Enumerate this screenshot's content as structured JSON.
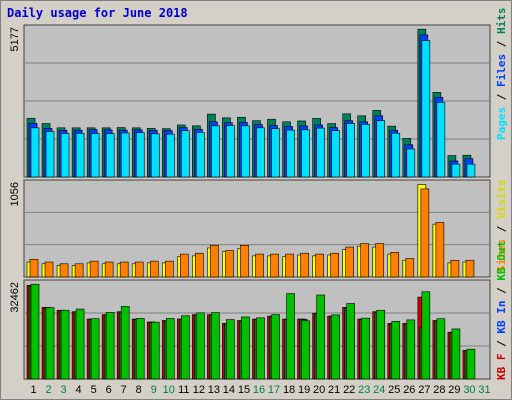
{
  "title": "Daily usage for June 2018",
  "colors": {
    "hits": "#00805c",
    "files": "#0040ff",
    "pages": "#00e0ff",
    "visits": "#ffff00",
    "sites": "#ff8000",
    "kbin": "#008000",
    "kbout": "#00c000",
    "kbf": "#cc0000",
    "grid": "#808080",
    "plot": "#c0c0c0",
    "weekend": "#008040",
    "weekday": "#000000"
  },
  "chart_data": [
    {
      "type": "bar",
      "panel": "pages-files-hits",
      "ymax_label": "5177",
      "ymax": 5177,
      "categories": [
        "1",
        "2",
        "3",
        "4",
        "5",
        "6",
        "7",
        "8",
        "9",
        "10",
        "11",
        "12",
        "13",
        "14",
        "15",
        "16",
        "17",
        "18",
        "19",
        "20",
        "21",
        "22",
        "23",
        "24",
        "25",
        "26",
        "27",
        "28",
        "29",
        "30",
        "31"
      ],
      "weekend_days": [
        "2",
        "3",
        "9",
        "10",
        "16",
        "17",
        "23",
        "24",
        "30",
        "31"
      ],
      "legend": [
        "Pages",
        "Files",
        "Hits"
      ],
      "series": [
        {
          "name": "Hits",
          "color": "#00805c",
          "values": [
            2050,
            1870,
            1720,
            1720,
            1720,
            1720,
            1730,
            1720,
            1700,
            1690,
            1820,
            1790,
            2200,
            2070,
            2090,
            1970,
            2020,
            1930,
            1960,
            2050,
            1870,
            2210,
            2140,
            2330,
            1780,
            1350,
            5170,
            2960,
            750,
            760,
            null
          ]
        },
        {
          "name": "Files",
          "color": "#0040ff",
          "values": [
            1880,
            1700,
            1630,
            1640,
            1660,
            1650,
            1640,
            1650,
            1630,
            1620,
            1730,
            1670,
            1930,
            1900,
            1910,
            1830,
            1800,
            1770,
            1790,
            1820,
            1730,
            1970,
            1930,
            2140,
            1630,
            1130,
            4970,
            2790,
            560,
            640,
            null
          ]
        },
        {
          "name": "Pages",
          "color": "#00e0ff",
          "values": [
            1720,
            1590,
            1520,
            1530,
            1520,
            1520,
            1540,
            1550,
            1510,
            1500,
            1620,
            1560,
            1790,
            1800,
            1790,
            1720,
            1690,
            1640,
            1650,
            1710,
            1620,
            1870,
            1840,
            1970,
            1530,
            980,
            4770,
            2610,
            450,
            450,
            null
          ]
        }
      ]
    },
    {
      "type": "bar",
      "panel": "visits-sites",
      "ymax_label": "1056",
      "ymax": 1056,
      "categories": [
        "1",
        "2",
        "3",
        "4",
        "5",
        "6",
        "7",
        "8",
        "9",
        "10",
        "11",
        "12",
        "13",
        "14",
        "15",
        "16",
        "17",
        "18",
        "19",
        "20",
        "21",
        "22",
        "23",
        "24",
        "25",
        "26",
        "27",
        "28",
        "29",
        "30",
        "31"
      ],
      "legend": [
        "Sites",
        "Visits"
      ],
      "series": [
        {
          "name": "Visits",
          "color": "#ffff00",
          "values": [
            170,
            150,
            130,
            130,
            160,
            150,
            150,
            150,
            160,
            160,
            230,
            240,
            330,
            290,
            320,
            240,
            240,
            230,
            250,
            240,
            250,
            310,
            350,
            340,
            260,
            190,
            1050,
            600,
            160,
            170,
            null
          ]
        },
        {
          "name": "Sites",
          "color": "#ff8000",
          "values": [
            200,
            170,
            150,
            150,
            180,
            170,
            170,
            170,
            180,
            180,
            260,
            270,
            360,
            300,
            360,
            260,
            260,
            260,
            270,
            260,
            270,
            340,
            380,
            380,
            280,
            210,
            1000,
            620,
            190,
            190,
            null
          ]
        }
      ]
    },
    {
      "type": "bar",
      "panel": "kbf-kbin-kbout",
      "ymax_label": "32462",
      "ymax": 32462,
      "categories": [
        "1",
        "2",
        "3",
        "4",
        "5",
        "6",
        "7",
        "8",
        "9",
        "10",
        "11",
        "12",
        "13",
        "14",
        "15",
        "16",
        "17",
        "18",
        "19",
        "20",
        "21",
        "22",
        "23",
        "24",
        "25",
        "26",
        "27",
        "28",
        "29",
        "30",
        "31"
      ],
      "legend": [
        "KB F",
        "KB In",
        "KB Out"
      ],
      "series": [
        {
          "name": "KB F",
          "color": "#cc0000",
          "values": [
            32000,
            24500,
            23500,
            23000,
            20500,
            22000,
            23000,
            20500,
            19500,
            20000,
            20500,
            22000,
            22000,
            19000,
            20000,
            20500,
            21500,
            20500,
            20500,
            22500,
            21500,
            24500,
            20500,
            23000,
            19000,
            19000,
            28000,
            20000,
            16000,
            9800,
            null
          ]
        },
        {
          "name": "KB In",
          "color": "#008000",
          "values": [
            31800,
            24200,
            23300,
            22800,
            20300,
            21800,
            22800,
            20300,
            19300,
            19800,
            20300,
            21800,
            21800,
            18800,
            19800,
            20300,
            21300,
            20300,
            20300,
            22300,
            21300,
            24200,
            20300,
            22800,
            18800,
            18800,
            17500,
            19800,
            15800,
            9700,
            null
          ]
        },
        {
          "name": "KB Out",
          "color": "#00c000",
          "values": [
            32400,
            24400,
            23500,
            23900,
            20600,
            22800,
            24800,
            20700,
            19400,
            20700,
            21600,
            22600,
            22700,
            20300,
            21200,
            20900,
            22000,
            29200,
            19900,
            28700,
            21900,
            25800,
            20800,
            23500,
            19700,
            20200,
            29800,
            20600,
            17100,
            10200,
            null
          ]
        }
      ]
    }
  ],
  "legend_labels": {
    "pages": "Pages",
    "files": "Files",
    "hits": "Hits",
    "sites": "Sites",
    "visits": "Visits",
    "kbf": "KB F",
    "kbin": "KB In",
    "kbout": "KB Out",
    "sep": " / "
  }
}
